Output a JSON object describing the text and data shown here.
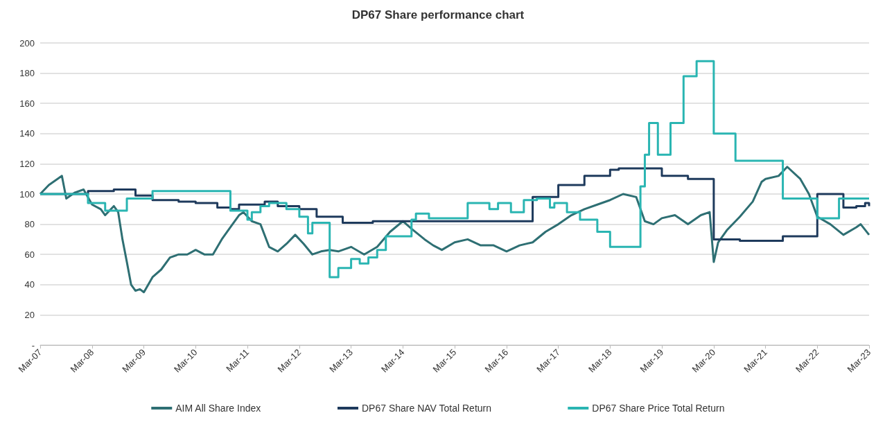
{
  "chart_data": {
    "type": "line",
    "title": "DP67 Share performance chart",
    "xlim": [
      "2007-03",
      "2023-03"
    ],
    "xticks": [
      {
        "value": "2007-03",
        "label": "Mar-07"
      },
      {
        "value": "2008-03",
        "label": "Mar-08"
      },
      {
        "value": "2009-03",
        "label": "Mar-09"
      },
      {
        "value": "2010-03",
        "label": "Mar-10"
      },
      {
        "value": "2011-03",
        "label": "Mar-11"
      },
      {
        "value": "2012-03",
        "label": "Mar-12"
      },
      {
        "value": "2013-03",
        "label": "Mar-13"
      },
      {
        "value": "2014-03",
        "label": "Mar-14"
      },
      {
        "value": "2015-03",
        "label": "Mar-15"
      },
      {
        "value": "2016-03",
        "label": "Mar-16"
      },
      {
        "value": "2017-03",
        "label": "Mar-17"
      },
      {
        "value": "2018-03",
        "label": "Mar-18"
      },
      {
        "value": "2019-03",
        "label": "Mar-19"
      },
      {
        "value": "2020-03",
        "label": "Mar-20"
      },
      {
        "value": "2021-03",
        "label": "Mar-21"
      },
      {
        "value": "2022-03",
        "label": "Mar-22"
      },
      {
        "value": "2023-03",
        "label": "Mar-23"
      }
    ],
    "ylim": [
      0,
      200
    ],
    "yticks": [
      {
        "value": 0,
        "label": "-"
      },
      20,
      40,
      60,
      80,
      100,
      120,
      140,
      160,
      180,
      200
    ],
    "grid": "y",
    "legend": "bottom",
    "marker": "none",
    "line_style": "solid",
    "series": [
      {
        "name": "AIM All Share Index",
        "type": "line",
        "color": "#2e6f73",
        "x": [
          "2007-03",
          "2007-05",
          "2007-07",
          "2007-08",
          "2007-09",
          "2007-11",
          "2008-01",
          "2008-03",
          "2008-05",
          "2008-06",
          "2008-08",
          "2008-09",
          "2008-10",
          "2008-11",
          "2008-12",
          "2009-01",
          "2009-02",
          "2009-03",
          "2009-05",
          "2009-07",
          "2009-09",
          "2009-11",
          "2010-01",
          "2010-03",
          "2010-05",
          "2010-07",
          "2010-09",
          "2010-11",
          "2011-01",
          "2011-02",
          "2011-04",
          "2011-06",
          "2011-08",
          "2011-10",
          "2011-12",
          "2012-02",
          "2012-04",
          "2012-06",
          "2012-08",
          "2012-10",
          "2012-12",
          "2013-03",
          "2013-06",
          "2013-09",
          "2013-12",
          "2014-03",
          "2014-05",
          "2014-08",
          "2014-10",
          "2014-12",
          "2015-03",
          "2015-06",
          "2015-09",
          "2015-12",
          "2016-03",
          "2016-06",
          "2016-09",
          "2016-12",
          "2017-03",
          "2017-06",
          "2017-09",
          "2017-12",
          "2018-03",
          "2018-06",
          "2018-09",
          "2018-11",
          "2019-01",
          "2019-03",
          "2019-06",
          "2019-09",
          "2019-12",
          "2020-02",
          "2020-03",
          "2020-04",
          "2020-06",
          "2020-09",
          "2020-12",
          "2021-02",
          "2021-03",
          "2021-06",
          "2021-08",
          "2021-11",
          "2022-01",
          "2022-03",
          "2022-06",
          "2022-09",
          "2022-12",
          "2023-01",
          "2023-03"
        ],
        "values": [
          100,
          106,
          110,
          112,
          97,
          101,
          103,
          93,
          90,
          86,
          92,
          88,
          70,
          55,
          40,
          36,
          37,
          35,
          45,
          50,
          58,
          60,
          60,
          63,
          60,
          60,
          70,
          78,
          86,
          88,
          82,
          80,
          65,
          62,
          67,
          73,
          67,
          60,
          62,
          63,
          62,
          65,
          60,
          65,
          75,
          82,
          77,
          70,
          66,
          63,
          68,
          70,
          66,
          66,
          62,
          66,
          68,
          75,
          80,
          86,
          90,
          93,
          96,
          100,
          98,
          82,
          80,
          84,
          86,
          80,
          86,
          88,
          55,
          68,
          76,
          85,
          95,
          108,
          110,
          112,
          118,
          110,
          100,
          85,
          80,
          73,
          78,
          80,
          73
        ]
      },
      {
        "name": "DP67 Share NAV Total Return",
        "type": "step",
        "color": "#1e3a5c",
        "x": [
          "2007-03",
          "2008-02",
          "2008-08",
          "2009-01",
          "2009-05",
          "2009-11",
          "2010-03",
          "2010-08",
          "2010-11",
          "2011-01",
          "2011-07",
          "2011-10",
          "2012-03",
          "2012-07",
          "2013-01",
          "2013-08",
          "2016-09",
          "2017-03",
          "2017-09",
          "2018-03",
          "2018-05",
          "2019-03",
          "2019-09",
          "2020-03",
          "2020-09",
          "2021-07",
          "2022-03",
          "2022-09",
          "2022-12",
          "2023-02",
          "2023-03"
        ],
        "values": [
          100,
          102,
          103,
          99,
          96,
          95,
          94,
          91,
          90,
          93,
          95,
          92,
          90,
          85,
          81,
          82,
          98,
          106,
          112,
          116,
          117,
          112,
          110,
          70,
          69,
          72,
          100,
          91,
          92,
          94,
          92
        ]
      },
      {
        "name": "DP67 Share Price Total Return",
        "type": "step",
        "color": "#2ab5b2",
        "x": [
          "2007-03",
          "2008-02",
          "2008-06",
          "2008-11",
          "2009-05",
          "2010-11",
          "2011-03",
          "2011-04",
          "2011-06",
          "2011-08",
          "2011-12",
          "2012-03",
          "2012-05",
          "2012-06",
          "2012-10",
          "2012-12",
          "2013-03",
          "2013-05",
          "2013-07",
          "2013-09",
          "2013-11",
          "2014-05",
          "2014-06",
          "2014-09",
          "2015-06",
          "2015-11",
          "2016-01",
          "2016-04",
          "2016-07",
          "2016-10",
          "2017-01",
          "2017-02",
          "2017-05",
          "2017-08",
          "2017-12",
          "2018-03",
          "2018-10",
          "2018-11",
          "2018-12",
          "2019-02",
          "2019-05",
          "2019-08",
          "2019-11",
          "2020-03",
          "2020-08",
          "2021-07",
          "2022-03",
          "2022-08",
          "2023-03"
        ],
        "values": [
          100,
          94,
          89,
          97,
          102,
          89,
          83,
          88,
          92,
          94,
          90,
          85,
          74,
          81,
          45,
          51,
          57,
          54,
          58,
          63,
          72,
          83,
          87,
          84,
          94,
          90,
          94,
          88,
          96,
          97,
          91,
          94,
          88,
          83,
          75,
          65,
          105,
          126,
          147,
          126,
          147,
          178,
          188,
          140,
          122,
          97,
          84,
          97,
          97
        ]
      }
    ]
  }
}
